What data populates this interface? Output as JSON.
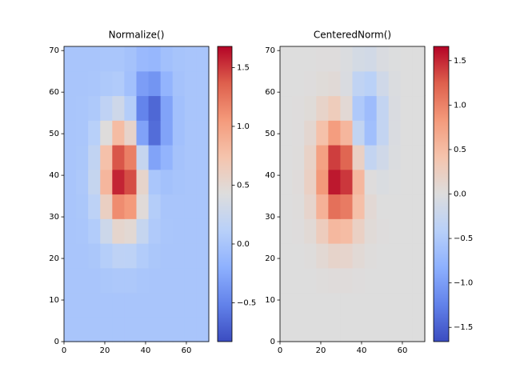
{
  "chart_data": [
    {
      "type": "heatmap",
      "title": "Normalize()",
      "colormap": "coolwarm",
      "xlim": [
        0,
        71
      ],
      "ylim": [
        0,
        71
      ],
      "xticks": [
        0,
        20,
        40,
        60
      ],
      "yticks": [
        0,
        10,
        20,
        30,
        40,
        50,
        60,
        70
      ],
      "clim": [
        -0.83,
        1.68
      ],
      "cticks": [
        {
          "value": -0.5,
          "label": "−0.5"
        },
        {
          "value": 0.0,
          "label": "0.0"
        },
        0.5,
        {
          "value": 1.0,
          "label": "1.0"
        },
        1.5
      ],
      "z": [
        [
          0,
          0,
          0,
          0,
          0,
          0,
          0,
          0,
          0,
          0,
          0,
          0
        ],
        [
          0,
          0,
          0,
          0,
          0,
          0,
          0,
          0,
          0,
          0,
          0,
          0
        ],
        [
          0,
          0,
          0,
          0.02,
          0.03,
          0.03,
          0.01,
          0,
          0,
          0,
          0,
          0
        ],
        [
          0,
          0,
          0.02,
          0.09,
          0.16,
          0.15,
          0.07,
          0.02,
          0,
          0,
          0,
          0
        ],
        [
          0,
          0.01,
          0.07,
          0.28,
          0.53,
          0.49,
          0.22,
          0.05,
          0.01,
          0,
          0,
          0
        ],
        [
          0,
          0.02,
          0.15,
          0.6,
          1.13,
          1.05,
          0.46,
          0.08,
          0,
          0,
          0,
          0
        ],
        [
          0,
          0.03,
          0.22,
          0.84,
          1.57,
          1.43,
          0.54,
          0.01,
          -0.04,
          -0.01,
          0,
          0
        ],
        [
          0,
          0.02,
          0.19,
          0.76,
          1.4,
          1.2,
          0.22,
          -0.29,
          -0.16,
          -0.03,
          0,
          0
        ],
        [
          0,
          0.01,
          0.11,
          0.44,
          0.8,
          0.55,
          -0.3,
          -0.64,
          -0.29,
          -0.05,
          0,
          0
        ],
        [
          0,
          0.01,
          0.04,
          0.17,
          0.29,
          0.08,
          -0.5,
          -0.67,
          -0.29,
          -0.05,
          0,
          0
        ],
        [
          0,
          0,
          0.01,
          0.04,
          0.06,
          -0.05,
          -0.33,
          -0.39,
          -0.16,
          -0.03,
          0,
          0
        ],
        [
          0,
          0,
          0,
          0.01,
          0.01,
          -0.03,
          -0.11,
          -0.13,
          -0.05,
          -0.01,
          0,
          0
        ]
      ]
    },
    {
      "type": "heatmap",
      "title": "CenteredNorm()",
      "colormap": "coolwarm",
      "xlim": [
        0,
        71
      ],
      "ylim": [
        0,
        71
      ],
      "xticks": [
        0,
        20,
        40,
        60
      ],
      "yticks": [
        0,
        10,
        20,
        30,
        40,
        50,
        60,
        70
      ],
      "clim": [
        -1.66,
        1.66
      ],
      "cticks": [
        {
          "value": -1.5,
          "label": "−1.5"
        },
        {
          "value": -1.0,
          "label": "−1.0"
        },
        {
          "value": -0.5,
          "label": "−0.5"
        },
        {
          "value": 0.0,
          "label": "0.0"
        },
        0.5,
        {
          "value": 1.0,
          "label": "1.0"
        },
        1.5
      ],
      "z": [
        [
          0,
          0,
          0,
          0,
          0,
          0,
          0,
          0,
          0,
          0,
          0,
          0
        ],
        [
          0,
          0,
          0,
          0,
          0,
          0,
          0,
          0,
          0,
          0,
          0,
          0
        ],
        [
          0,
          0,
          0,
          0.02,
          0.03,
          0.03,
          0.01,
          0,
          0,
          0,
          0,
          0
        ],
        [
          0,
          0,
          0.02,
          0.09,
          0.16,
          0.15,
          0.07,
          0.02,
          0,
          0,
          0,
          0
        ],
        [
          0,
          0.01,
          0.07,
          0.28,
          0.53,
          0.49,
          0.22,
          0.05,
          0.01,
          0,
          0,
          0
        ],
        [
          0,
          0.02,
          0.15,
          0.6,
          1.13,
          1.05,
          0.46,
          0.08,
          0,
          0,
          0,
          0
        ],
        [
          0,
          0.03,
          0.22,
          0.84,
          1.57,
          1.43,
          0.54,
          0.01,
          -0.04,
          -0.01,
          0,
          0
        ],
        [
          0,
          0.02,
          0.19,
          0.76,
          1.4,
          1.2,
          0.22,
          -0.29,
          -0.16,
          -0.03,
          0,
          0
        ],
        [
          0,
          0.01,
          0.11,
          0.44,
          0.8,
          0.55,
          -0.3,
          -0.64,
          -0.29,
          -0.05,
          0,
          0
        ],
        [
          0,
          0.01,
          0.04,
          0.17,
          0.29,
          0.08,
          -0.5,
          -0.67,
          -0.29,
          -0.05,
          0,
          0
        ],
        [
          0,
          0,
          0.01,
          0.04,
          0.06,
          -0.05,
          -0.33,
          -0.39,
          -0.16,
          -0.03,
          0,
          0
        ],
        [
          0,
          0,
          0,
          0.01,
          0.01,
          -0.03,
          -0.11,
          -0.13,
          -0.05,
          -0.01,
          0,
          0
        ]
      ]
    }
  ]
}
